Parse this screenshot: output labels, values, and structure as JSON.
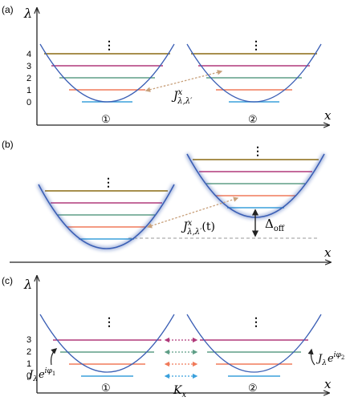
{
  "panels": [
    {
      "label": "(a)",
      "y_axis_label": "λ",
      "x_axis_label": "x",
      "level_ticks": [
        "4",
        "3",
        "2",
        "1",
        "0"
      ],
      "well_labels": [
        "①",
        "②"
      ],
      "vertical_dots": "⋮",
      "coupling": {
        "symbol": "J",
        "superscript": "x",
        "subscript": "λ,λ′"
      }
    },
    {
      "label": "(b)",
      "x_axis_label": "x",
      "vertical_dots": "⋮",
      "coupling": {
        "symbol": "J",
        "superscript": "x",
        "subscript": "λ,λ′",
        "suffix": "(t)"
      },
      "offset": {
        "symbol": "Δ",
        "subscript": "off"
      }
    },
    {
      "label": "(c)",
      "y_axis_label": "λ",
      "x_axis_label": "x",
      "level_ticks": [
        "3",
        "2",
        "1",
        "0"
      ],
      "well_labels": [
        "①",
        "②"
      ],
      "vertical_dots": "⋮",
      "left_drive": {
        "symbol": "J",
        "subscript": "λ",
        "base": "e",
        "exponent": "iφ",
        "exp_sub": "1"
      },
      "right_drive": {
        "symbol": "J",
        "subscript": "λ",
        "base": "e",
        "exponent": "iφ",
        "exp_sub": "2"
      },
      "tunnel": {
        "symbol": "K",
        "subscript": "x"
      }
    }
  ],
  "colors": {
    "parabola": "#3b5fb5",
    "axis": "#222222",
    "level_0": "#3aa0dc",
    "level_1": "#f07a5a",
    "level_2": "#5e9e86",
    "level_3": "#b0397a",
    "level_4": "#8a6a12",
    "coupling_arrow": "#c8a07a",
    "offset_line": "#999999"
  }
}
